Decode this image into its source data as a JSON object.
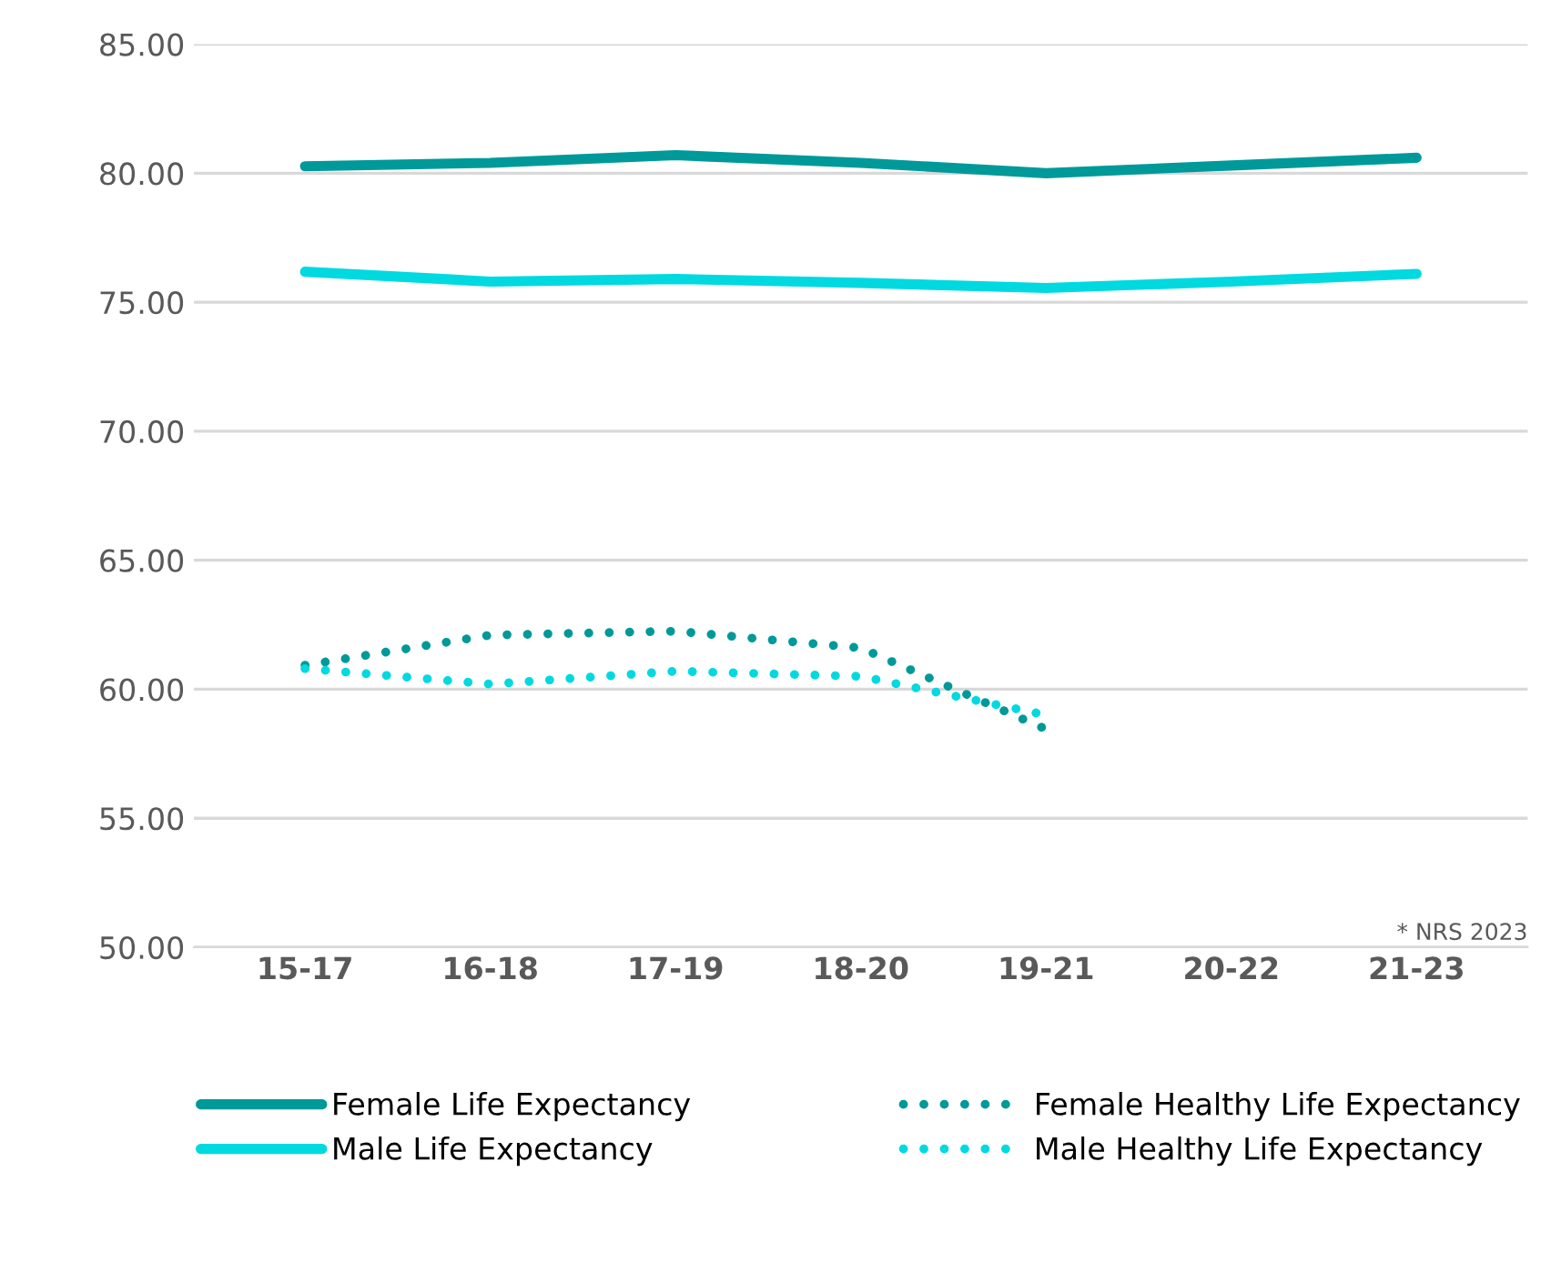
{
  "chart_data": {
    "type": "line",
    "categories": [
      "15-17",
      "16-18",
      "17-19",
      "18-20",
      "19-21",
      "20-22",
      "21-23"
    ],
    "series": [
      {
        "name": "Female Life Expectancy",
        "color": "#009999",
        "line_style": "solid",
        "values": [
          80.27,
          80.4,
          80.7,
          80.4,
          80.0,
          80.3,
          80.6
        ]
      },
      {
        "name": "Female Healthy Life Expectancy",
        "color": "#009999",
        "line_style": "dotted",
        "values": [
          60.93,
          62.1,
          62.25,
          61.6,
          58.45,
          null,
          null
        ]
      },
      {
        "name": "Male Life Expectancy",
        "color": "#00d9e0",
        "line_style": "solid",
        "values": [
          76.18,
          75.8,
          75.9,
          75.75,
          75.55,
          75.8,
          76.1
        ]
      },
      {
        "name": "Male Healthy Life Expectancy",
        "color": "#00d9e0",
        "line_style": "dotted",
        "values": [
          60.8,
          60.2,
          60.7,
          60.5,
          59.0,
          null,
          null
        ]
      }
    ],
    "ylim": [
      50,
      85
    ],
    "yticks": [
      {
        "value": 50,
        "label": "50.00"
      },
      {
        "value": 55,
        "label": "55.00"
      },
      {
        "value": 60,
        "label": "60.00"
      },
      {
        "value": 65,
        "label": "65.00"
      },
      {
        "value": 70,
        "label": "70.00"
      },
      {
        "value": 75,
        "label": "75.00"
      },
      {
        "value": 80,
        "label": "80.00"
      },
      {
        "value": 85,
        "label": "85.00"
      }
    ],
    "grid": "y",
    "legend": "bottom",
    "marker": "none",
    "annotations": [
      "* NRS 2023"
    ]
  }
}
